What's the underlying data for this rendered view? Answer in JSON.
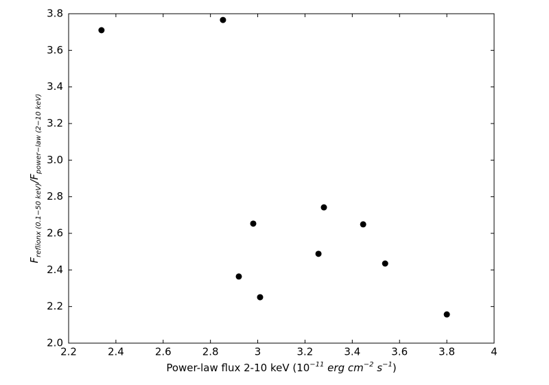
{
  "chart_data": {
    "type": "scatter",
    "xlabel": [
      "Power-law flux 2-10 keV (",
      "10",
      "−11",
      " erg cm",
      "−2",
      " s",
      "−1",
      ")"
    ],
    "ylabel": [
      "F",
      "reflionx (0.1−50 keV)",
      "/F",
      "power−law (2−10 keV)"
    ],
    "x": [
      2.339,
      2.853,
      2.981,
      2.92,
      3.01,
      3.28,
      3.257,
      3.446,
      3.539,
      3.8
    ],
    "values": [
      3.71,
      3.766,
      2.653,
      2.364,
      2.251,
      2.742,
      2.488,
      2.649,
      2.435,
      2.157
    ],
    "color": "#000000",
    "xlim": [
      2.2,
      4.0
    ],
    "ylim": [
      2.0,
      3.8
    ],
    "xticks": [
      2.2,
      2.4,
      2.6,
      2.8,
      3,
      3.2,
      3.4,
      3.6,
      3.8,
      4
    ],
    "yticks": [
      {
        "value": 2,
        "label": "2.0"
      },
      2.2,
      2.4,
      2.6,
      2.8,
      {
        "value": 3,
        "label": "3.0"
      },
      3.2,
      3.4,
      3.6,
      3.8
    ],
    "grid": false
  }
}
